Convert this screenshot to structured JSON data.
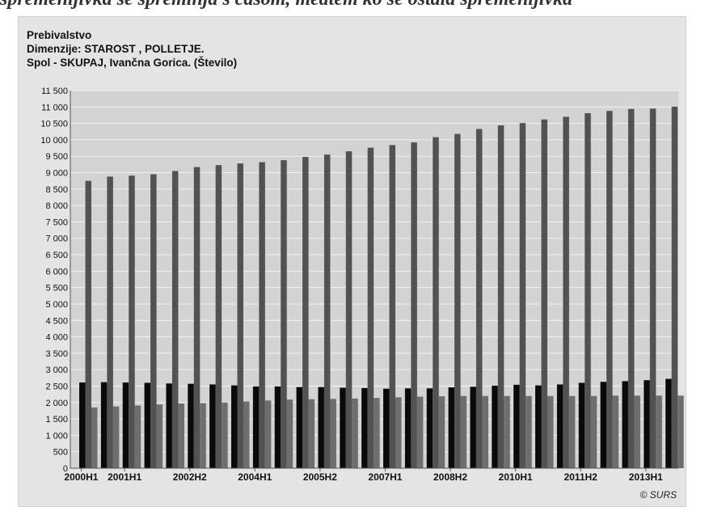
{
  "page": {
    "header_text": "spremenljivka se spreminja s časom, medtem ko se ostala spremenljivka",
    "credit": "© SURS"
  },
  "chart_data": {
    "type": "bar",
    "title_lines": [
      "Prebivalstvo",
      "Dimenzije: STAROST , POLLETJE.",
      "Spol - SKUPAJ, Ivančna Gorica. (Število)"
    ],
    "categories": [
      "2000H1",
      "2000H2",
      "2001H1",
      "2001H2",
      "2002H1",
      "2002H2",
      "2003H1",
      "2003H2",
      "2004H1",
      "2004H2",
      "2005H1",
      "2005H2",
      "2006H1",
      "2006H2",
      "2007H1",
      "2007H2",
      "2008H1",
      "2008H2",
      "2009H1",
      "2009H2",
      "2010H1",
      "2010H2",
      "2011H1",
      "2011H2",
      "2012H1",
      "2012H2",
      "2013H1",
      "2013H2"
    ],
    "x_tick_labels": [
      "2000H1",
      "2001H1",
      "2002H2",
      "2004H1",
      "2005H2",
      "2007H1",
      "2008H2",
      "2010H1",
      "2011H2",
      "2013H1"
    ],
    "x_tick_indices": [
      0,
      2,
      5,
      8,
      11,
      14,
      17,
      20,
      23,
      26
    ],
    "y_ticks": [
      0,
      500,
      1000,
      1500,
      2000,
      2500,
      3000,
      3500,
      4000,
      4500,
      5000,
      5500,
      6000,
      6500,
      7000,
      7500,
      8000,
      8500,
      9000,
      9500,
      10000,
      10500,
      11000,
      11500
    ],
    "y_tick_labels": [
      "0",
      "500",
      "1 000",
      "1 500",
      "2 000",
      "2 500",
      "3 000",
      "3 500",
      "4 000",
      "4 500",
      "5 000",
      "5 500",
      "6 000",
      "6 500",
      "7 000",
      "7 500",
      "8 000",
      "8 500",
      "9 000",
      "9 500",
      "10 000",
      "10 500",
      "11 000",
      "11 500"
    ],
    "ylim": [
      0,
      11500
    ],
    "grid": true,
    "colors": [
      "#0a0a0a",
      "#525252",
      "#6e6e6e"
    ],
    "series": [
      {
        "values": [
          2610,
          2620,
          2610,
          2600,
          2580,
          2570,
          2550,
          2520,
          2490,
          2490,
          2470,
          2470,
          2450,
          2440,
          2420,
          2430,
          2430,
          2460,
          2480,
          2510,
          2540,
          2520,
          2550,
          2600,
          2630,
          2650,
          2680,
          2720
        ]
      },
      {
        "values": [
          8750,
          8880,
          8910,
          8950,
          9050,
          9170,
          9230,
          9280,
          9320,
          9380,
          9480,
          9550,
          9650,
          9760,
          9840,
          9920,
          10080,
          10180,
          10330,
          10440,
          10510,
          10620,
          10700,
          10810,
          10880,
          10940,
          10950,
          11010
        ]
      },
      {
        "values": [
          1850,
          1880,
          1910,
          1940,
          1970,
          1980,
          2000,
          2030,
          2060,
          2090,
          2100,
          2110,
          2120,
          2140,
          2160,
          2180,
          2190,
          2200,
          2200,
          2200,
          2200,
          2200,
          2200,
          2200,
          2210,
          2210,
          2210,
          2210
        ]
      }
    ]
  }
}
